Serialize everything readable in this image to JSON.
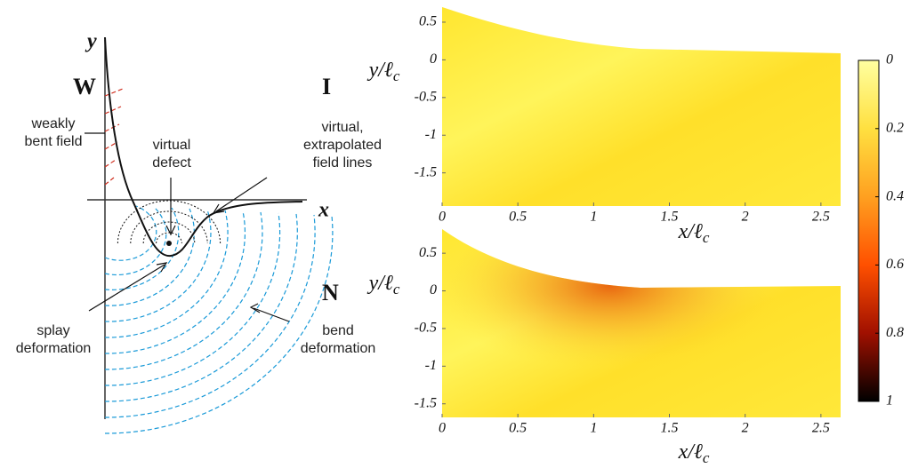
{
  "diagram": {
    "y_axis": "y",
    "x_axis": "x",
    "regions": [
      "W",
      "I",
      "N"
    ],
    "labels": {
      "weakly_bent": [
        "weakly",
        "bent field"
      ],
      "virtual_defect": [
        "virtual",
        "defect"
      ],
      "extrapolated": [
        "virtual,",
        "extrapolated",
        "field lines"
      ],
      "splay": [
        "splay",
        "deformation"
      ],
      "bend": [
        "bend",
        "deformation"
      ]
    }
  },
  "plots": [
    {
      "xlim": [
        0,
        2.63
      ],
      "ylim": [
        -1.94,
        0.7
      ],
      "xticks": [
        0,
        0.5,
        1,
        1.5,
        2,
        2.5
      ],
      "yticks": [
        0.5,
        0,
        -0.5,
        -1,
        -1.5
      ],
      "x_label": {
        "text": "x/ℓ",
        "sub": "c"
      },
      "y_label": {
        "text": "y/ℓ",
        "sub": "c"
      }
    },
    {
      "xlim": [
        0,
        2.63
      ],
      "ylim": [
        -1.68,
        0.82
      ],
      "xticks": [
        0,
        0.5,
        1,
        1.5,
        2,
        2.5
      ],
      "yticks": [
        0.5,
        0,
        -0.5,
        -1,
        -1.5
      ],
      "x_label": {
        "text": "x/ℓ",
        "sub": "c"
      },
      "y_label": {
        "text": "y/ℓ",
        "sub": "c"
      }
    }
  ],
  "colorbar": {
    "lim": [
      0,
      1
    ],
    "ticks": [
      0,
      0.2,
      0.4,
      0.6,
      0.8,
      1
    ]
  }
}
